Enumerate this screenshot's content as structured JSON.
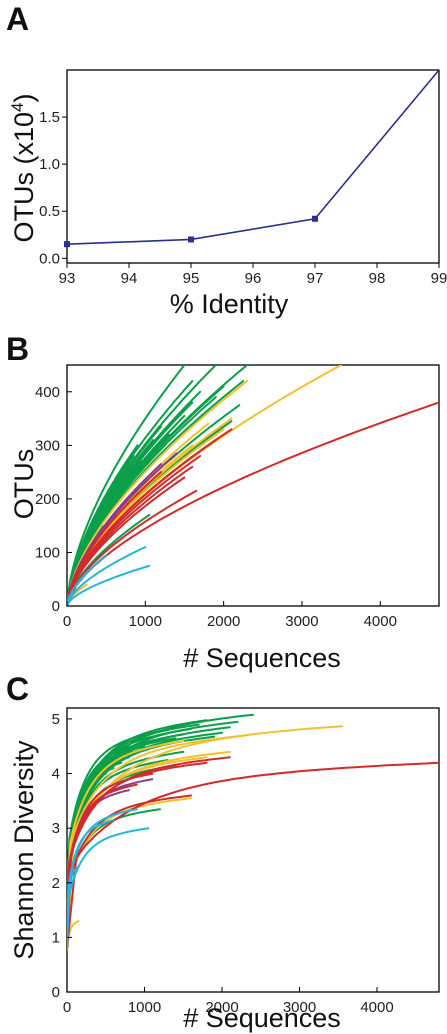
{
  "panels": {
    "a": {
      "letter": "A"
    },
    "b": {
      "letter": "B"
    },
    "c": {
      "letter": "C"
    }
  },
  "colors": {
    "line_a": "#2b2f8f",
    "green": "#0aa04a",
    "yellow": "#f2c12e",
    "red": "#d42a2a",
    "cyan": "#22b7e0",
    "purple": "#8a3c8c"
  },
  "chart_data": [
    {
      "type": "line",
      "panel": "A",
      "xlabel": "% Identity",
      "ylabel": "OTUs (x10",
      "ylabel_sup": "4",
      "ylabel_close": ")",
      "x": [
        93,
        95,
        97,
        99
      ],
      "series": [
        {
          "values": [
            0.15,
            0.2,
            0.42,
            2.0
          ],
          "markers": [
            true,
            true,
            true,
            false
          ]
        }
      ],
      "xlim": [
        93,
        99
      ],
      "ylim": [
        -0.05,
        2.0
      ],
      "xticks": [
        93,
        94,
        95,
        96,
        97,
        98,
        99
      ],
      "xtick_labels": [
        "93",
        "94",
        "95",
        "96",
        "97",
        "98",
        "99"
      ],
      "yticks": [
        0.0,
        0.5,
        1.0,
        1.5
      ],
      "ytick_labels": [
        "0.0",
        "0.5",
        "1.0",
        "1.5"
      ],
      "grid": false,
      "legend": "none"
    },
    {
      "type": "line",
      "panel": "B",
      "xlabel": "# Sequences",
      "ylabel": "OTUs",
      "xlim": [
        0,
        4750
      ],
      "ylim": [
        0,
        450
      ],
      "xticks": [
        0,
        1000,
        2000,
        3000,
        4000
      ],
      "xtick_labels": [
        "0",
        "1000",
        "2000",
        "3000",
        "4000"
      ],
      "yticks": [
        0,
        100,
        200,
        300,
        400
      ],
      "ytick_labels": [
        "0",
        "100",
        "200",
        "300",
        "400"
      ],
      "grid": false,
      "legend": "none",
      "curve_model": "power",
      "curves": [
        {
          "c": "red",
          "n": 4750,
          "y": 380
        },
        {
          "c": "yellow",
          "n": 3500,
          "y": 450
        },
        {
          "c": "yellow",
          "n": 2300,
          "y": 420
        },
        {
          "c": "yellow",
          "n": 2100,
          "y": 350
        },
        {
          "c": "yellow",
          "n": 2000,
          "y": 330
        },
        {
          "c": "yellow",
          "n": 1600,
          "y": 300
        },
        {
          "c": "yellow",
          "n": 1300,
          "y": 270
        },
        {
          "c": "yellow",
          "n": 1800,
          "y": 340
        },
        {
          "c": "red",
          "n": 2100,
          "y": 330
        },
        {
          "c": "red",
          "n": 1900,
          "y": 310
        },
        {
          "c": "red",
          "n": 1700,
          "y": 280
        },
        {
          "c": "red",
          "n": 1600,
          "y": 260
        },
        {
          "c": "red",
          "n": 1500,
          "y": 240
        },
        {
          "c": "red",
          "n": 1650,
          "y": 215
        },
        {
          "c": "red",
          "n": 1200,
          "y": 250
        },
        {
          "c": "purple",
          "n": 1200,
          "y": 265
        },
        {
          "c": "purple",
          "n": 1400,
          "y": 285
        },
        {
          "c": "green",
          "n": 1500,
          "y": 450
        },
        {
          "c": "green",
          "n": 1900,
          "y": 450
        },
        {
          "c": "green",
          "n": 2300,
          "y": 450
        },
        {
          "c": "green",
          "n": 2250,
          "y": 420
        },
        {
          "c": "green",
          "n": 2200,
          "y": 375
        },
        {
          "c": "green",
          "n": 2100,
          "y": 345
        },
        {
          "c": "green",
          "n": 1900,
          "y": 390
        },
        {
          "c": "green",
          "n": 1800,
          "y": 365
        },
        {
          "c": "green",
          "n": 1700,
          "y": 400
        },
        {
          "c": "green",
          "n": 1600,
          "y": 380
        },
        {
          "c": "green",
          "n": 1500,
          "y": 355
        },
        {
          "c": "green",
          "n": 1400,
          "y": 340
        },
        {
          "c": "green",
          "n": 1300,
          "y": 320
        },
        {
          "c": "green",
          "n": 1250,
          "y": 300
        },
        {
          "c": "green",
          "n": 1200,
          "y": 335
        },
        {
          "c": "green",
          "n": 1100,
          "y": 310
        },
        {
          "c": "green",
          "n": 1000,
          "y": 290
        },
        {
          "c": "green",
          "n": 950,
          "y": 270
        },
        {
          "c": "green",
          "n": 900,
          "y": 300
        },
        {
          "c": "green",
          "n": 850,
          "y": 280
        },
        {
          "c": "green",
          "n": 800,
          "y": 260
        },
        {
          "c": "green",
          "n": 750,
          "y": 240
        },
        {
          "c": "green",
          "n": 700,
          "y": 255
        },
        {
          "c": "green",
          "n": 650,
          "y": 225
        },
        {
          "c": "green",
          "n": 600,
          "y": 205
        },
        {
          "c": "green",
          "n": 550,
          "y": 190
        },
        {
          "c": "green",
          "n": 500,
          "y": 170
        },
        {
          "c": "green",
          "n": 450,
          "y": 150
        },
        {
          "c": "green",
          "n": 400,
          "y": 135
        },
        {
          "c": "green",
          "n": 350,
          "y": 120
        },
        {
          "c": "green",
          "n": 1050,
          "y": 170
        },
        {
          "c": "green",
          "n": 1600,
          "y": 420
        },
        {
          "c": "green",
          "n": 2000,
          "y": 410
        },
        {
          "c": "cyan",
          "n": 1050,
          "y": 75
        },
        {
          "c": "cyan",
          "n": 1000,
          "y": 110
        },
        {
          "c": "cyan",
          "n": 500,
          "y": 95
        },
        {
          "c": "cyan",
          "n": 300,
          "y": 70
        },
        {
          "c": "yellow",
          "n": 250,
          "y": 40
        }
      ]
    },
    {
      "type": "line",
      "panel": "C",
      "xlabel": "# Sequences",
      "ylabel": "Shannon Diversity",
      "xlim": [
        0,
        4800
      ],
      "ylim": [
        0,
        5.2
      ],
      "xticks": [
        0,
        1000,
        2000,
        3000,
        4000
      ],
      "xtick_labels": [
        "0",
        "1000",
        "2000",
        "3000",
        "4000"
      ],
      "yticks": [
        0,
        1,
        2,
        3,
        4,
        5
      ],
      "ytick_labels": [
        "0",
        "1",
        "2",
        "3",
        "4",
        "5"
      ],
      "grid": false,
      "legend": "none",
      "curve_model": "saturating",
      "curves": [
        {
          "c": "red",
          "n": 4800,
          "y": 4.2
        },
        {
          "c": "yellow",
          "n": 3550,
          "y": 4.87
        },
        {
          "c": "green",
          "n": 2400,
          "y": 5.08
        },
        {
          "c": "green",
          "n": 2200,
          "y": 4.95
        },
        {
          "c": "green",
          "n": 2100,
          "y": 4.85
        },
        {
          "c": "green",
          "n": 2000,
          "y": 4.75
        },
        {
          "c": "green",
          "n": 1900,
          "y": 4.68
        },
        {
          "c": "green",
          "n": 1800,
          "y": 4.98
        },
        {
          "c": "green",
          "n": 1700,
          "y": 4.9
        },
        {
          "c": "green",
          "n": 1600,
          "y": 4.82
        },
        {
          "c": "green",
          "n": 1500,
          "y": 4.72
        },
        {
          "c": "green",
          "n": 1400,
          "y": 4.65
        },
        {
          "c": "green",
          "n": 1300,
          "y": 4.55
        },
        {
          "c": "green",
          "n": 1200,
          "y": 4.78
        },
        {
          "c": "green",
          "n": 1100,
          "y": 4.6
        },
        {
          "c": "green",
          "n": 1000,
          "y": 4.5
        },
        {
          "c": "green",
          "n": 900,
          "y": 4.42
        },
        {
          "c": "green",
          "n": 800,
          "y": 4.3
        },
        {
          "c": "green",
          "n": 700,
          "y": 4.2
        },
        {
          "c": "green",
          "n": 600,
          "y": 4.1
        },
        {
          "c": "green",
          "n": 500,
          "y": 4.0
        },
        {
          "c": "green",
          "n": 1500,
          "y": 4.4
        },
        {
          "c": "green",
          "n": 1300,
          "y": 4.25
        },
        {
          "c": "green",
          "n": 1200,
          "y": 3.35
        },
        {
          "c": "green",
          "n": 1400,
          "y": 4.15
        },
        {
          "c": "yellow",
          "n": 2300,
          "y": 4.7
        },
        {
          "c": "yellow",
          "n": 2100,
          "y": 4.4
        },
        {
          "c": "yellow",
          "n": 1800,
          "y": 4.3
        },
        {
          "c": "yellow",
          "n": 1500,
          "y": 4.6
        },
        {
          "c": "yellow",
          "n": 1600,
          "y": 3.55
        },
        {
          "c": "red",
          "n": 2100,
          "y": 4.3
        },
        {
          "c": "red",
          "n": 1800,
          "y": 4.2
        },
        {
          "c": "red",
          "n": 1600,
          "y": 3.6
        },
        {
          "c": "red",
          "n": 1100,
          "y": 4.0
        },
        {
          "c": "red",
          "n": 900,
          "y": 3.8
        },
        {
          "c": "purple",
          "n": 1100,
          "y": 3.9
        },
        {
          "c": "purple",
          "n": 800,
          "y": 3.7
        },
        {
          "c": "cyan",
          "n": 1050,
          "y": 3.0
        },
        {
          "c": "cyan",
          "n": 900,
          "y": 3.35
        },
        {
          "c": "cyan",
          "n": 600,
          "y": 3.15
        },
        {
          "c": "cyan",
          "n": 150,
          "y": 2.3
        },
        {
          "c": "yellow",
          "n": 150,
          "y": 1.3
        }
      ]
    }
  ]
}
